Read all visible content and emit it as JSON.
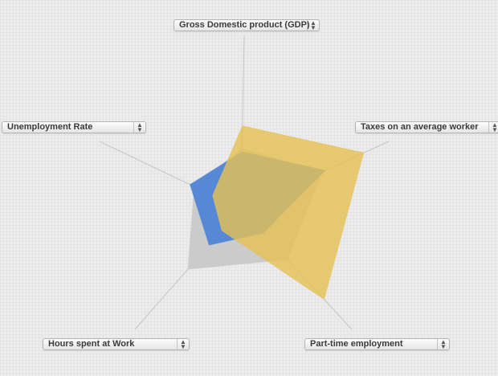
{
  "selectors": {
    "top": "Gross Domestic product (GDP)",
    "top_right": "Taxes on an average worker",
    "bottom_right": "Part-time employment",
    "bottom_left": "Hours spent at Work",
    "top_left": "Unemployment Rate"
  },
  "chart_data": {
    "type": "radar",
    "axes": [
      "Gross Domestic product (GDP)",
      "Taxes on an average worker",
      "Part-time employment",
      "Hours spent at Work",
      "Unemployment Rate"
    ],
    "value_scale": "relative fraction of axis length (0-1), no ticks printed",
    "series": [
      {
        "color": "#c9c9c9",
        "values": [
          0.35,
          0.55,
          0.42,
          0.5,
          0.33
        ]
      },
      {
        "color": "#4f84d6",
        "values": [
          0.33,
          0.57,
          0.2,
          0.3,
          0.36
        ]
      },
      {
        "color": "#e5c155",
        "values": [
          0.48,
          0.83,
          0.75,
          0.18,
          0.2
        ]
      }
    ],
    "grid": false
  }
}
